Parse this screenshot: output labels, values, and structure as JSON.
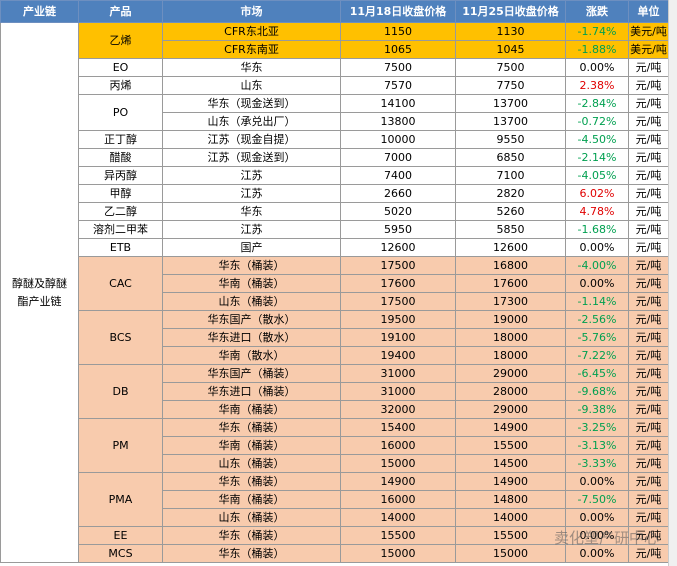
{
  "header": [
    "产业链",
    "产品",
    "市场",
    "11月18日收盘价格",
    "11月25日收盘价格",
    "涨跌",
    "单位"
  ],
  "chain": "醇醚及醇醚酯产业链",
  "products": [
    {
      "name": "乙烯",
      "fill": "#ffc000",
      "rows": [
        [
          "CFR东北亚",
          "1150",
          "1130",
          "-1.74%",
          "美元/吨"
        ],
        [
          "CFR东南亚",
          "1065",
          "1045",
          "-1.88%",
          "美元/吨"
        ]
      ]
    },
    {
      "name": "EO",
      "fill": "#ffffff",
      "rows": [
        [
          "华东",
          "7500",
          "7500",
          "0.00%",
          "元/吨"
        ]
      ]
    },
    {
      "name": "丙烯",
      "fill": "#ffffff",
      "rows": [
        [
          "山东",
          "7570",
          "7750",
          "2.38%",
          "元/吨"
        ]
      ]
    },
    {
      "name": "PO",
      "fill": "#ffffff",
      "rows": [
        [
          "华东（现金送到）",
          "14100",
          "13700",
          "-2.84%",
          "元/吨"
        ],
        [
          "山东（承兑出厂）",
          "13800",
          "13700",
          "-0.72%",
          "元/吨"
        ]
      ]
    },
    {
      "name": "正丁醇",
      "fill": "#ffffff",
      "rows": [
        [
          "江苏（现金自提）",
          "10000",
          "9550",
          "-4.50%",
          "元/吨"
        ]
      ]
    },
    {
      "name": "醋酸",
      "fill": "#ffffff",
      "rows": [
        [
          "江苏（现金送到）",
          "7000",
          "6850",
          "-2.14%",
          "元/吨"
        ]
      ]
    },
    {
      "name": "异丙醇",
      "fill": "#ffffff",
      "rows": [
        [
          "江苏",
          "7400",
          "7100",
          "-4.05%",
          "元/吨"
        ]
      ]
    },
    {
      "name": "甲醇",
      "fill": "#ffffff",
      "rows": [
        [
          "江苏",
          "2660",
          "2820",
          "6.02%",
          "元/吨"
        ]
      ]
    },
    {
      "name": "乙二醇",
      "fill": "#ffffff",
      "rows": [
        [
          "华东",
          "5020",
          "5260",
          "4.78%",
          "元/吨"
        ]
      ]
    },
    {
      "name": "溶剂二甲苯",
      "fill": "#ffffff",
      "rows": [
        [
          "江苏",
          "5950",
          "5850",
          "-1.68%",
          "元/吨"
        ]
      ]
    },
    {
      "name": "ETB",
      "fill": "#ffffff",
      "rows": [
        [
          "国产",
          "12600",
          "12600",
          "0.00%",
          "元/吨"
        ]
      ]
    },
    {
      "name": "CAC",
      "fill": "#f8cbad",
      "rows": [
        [
          "华东（桶装）",
          "17500",
          "16800",
          "-4.00%",
          "元/吨"
        ],
        [
          "华南（桶装）",
          "17600",
          "17600",
          "0.00%",
          "元/吨"
        ],
        [
          "山东（桶装）",
          "17500",
          "17300",
          "-1.14%",
          "元/吨"
        ]
      ]
    },
    {
      "name": "BCS",
      "fill": "#f8cbad",
      "rows": [
        [
          "华东国产（散水）",
          "19500",
          "19000",
          "-2.56%",
          "元/吨"
        ],
        [
          "华东进口（散水）",
          "19100",
          "18000",
          "-5.76%",
          "元/吨"
        ],
        [
          "华南（散水）",
          "19400",
          "18000",
          "-7.22%",
          "元/吨"
        ]
      ]
    },
    {
      "name": "DB",
      "fill": "#f8cbad",
      "rows": [
        [
          "华东国产（桶装）",
          "31000",
          "29000",
          "-6.45%",
          "元/吨"
        ],
        [
          "华东进口（桶装）",
          "31000",
          "28000",
          "-9.68%",
          "元/吨"
        ],
        [
          "华南（桶装）",
          "32000",
          "29000",
          "-9.38%",
          "元/吨"
        ]
      ]
    },
    {
      "name": "PM",
      "fill": "#f8cbad",
      "rows": [
        [
          "华东（桶装）",
          "15400",
          "14900",
          "-3.25%",
          "元/吨"
        ],
        [
          "华南（桶装）",
          "16000",
          "15500",
          "-3.13%",
          "元/吨"
        ],
        [
          "山东（桶装）",
          "15000",
          "14500",
          "-3.33%",
          "元/吨"
        ]
      ]
    },
    {
      "name": "PMA",
      "fill": "#f8cbad",
      "rows": [
        [
          "华东（桶装）",
          "14900",
          "14900",
          "0.00%",
          "元/吨"
        ],
        [
          "华南（桶装）",
          "16000",
          "14800",
          "-7.50%",
          "元/吨"
        ],
        [
          "山东（桶装）",
          "14000",
          "14000",
          "0.00%",
          "元/吨"
        ]
      ]
    },
    {
      "name": "EE",
      "fill": "#f8cbad",
      "rows": [
        [
          "华东（桶装）",
          "15500",
          "15500",
          "0.00%",
          "元/吨"
        ]
      ]
    },
    {
      "name": "MCS",
      "fill": "#f8cbad",
      "rows": [
        [
          "华东（桶装）",
          "15000",
          "15000",
          "0.00%",
          "元/吨"
        ]
      ]
    }
  ],
  "watermark": "卖化塑产研中心"
}
